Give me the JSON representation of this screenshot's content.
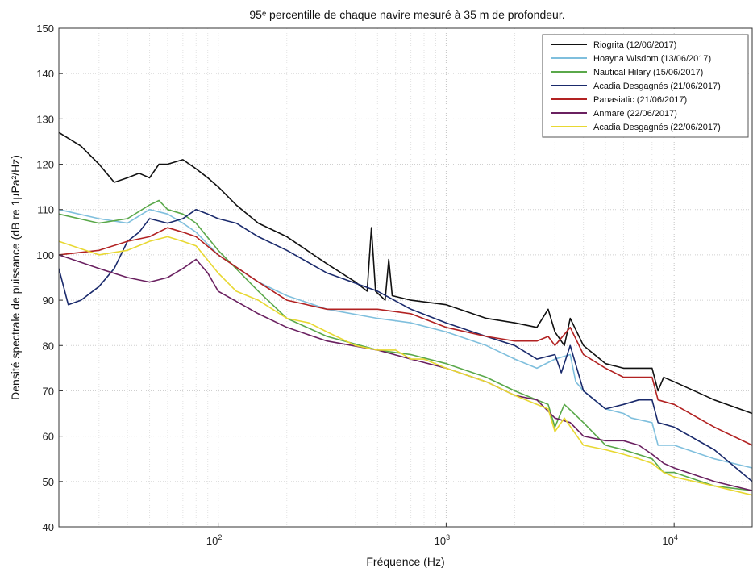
{
  "chart_data": {
    "type": "line",
    "title": "95ᵉ percentille de chaque navire mesuré à 35 m de profondeur.",
    "xlabel": "Fréquence (Hz)",
    "ylabel": "Densité spectrale de puissance (dB re 1µPa²/Hz)",
    "xscale": "log",
    "xlim": [
      20,
      22000
    ],
    "ylim": [
      40,
      150
    ],
    "grid": true,
    "legend_position": "top-right",
    "yticks": [
      40,
      50,
      60,
      70,
      80,
      90,
      100,
      110,
      120,
      130,
      140,
      150
    ],
    "xticks": [
      100,
      1000,
      10000
    ],
    "xtick_labels": [
      {
        "base": "10",
        "exp": "2"
      },
      {
        "base": "10",
        "exp": "3"
      },
      {
        "base": "10",
        "exp": "4"
      }
    ],
    "series": [
      {
        "name": "Riogrita  (12/06/2017)",
        "color": "#111111",
        "points": [
          [
            20,
            127
          ],
          [
            25,
            124
          ],
          [
            30,
            120
          ],
          [
            35,
            116
          ],
          [
            40,
            117
          ],
          [
            45,
            118
          ],
          [
            50,
            117
          ],
          [
            55,
            120
          ],
          [
            60,
            120
          ],
          [
            70,
            121
          ],
          [
            80,
            119
          ],
          [
            90,
            117
          ],
          [
            100,
            115
          ],
          [
            120,
            111
          ],
          [
            150,
            107
          ],
          [
            200,
            104
          ],
          [
            300,
            98
          ],
          [
            400,
            94
          ],
          [
            450,
            92
          ],
          [
            470,
            106
          ],
          [
            490,
            92
          ],
          [
            540,
            90
          ],
          [
            560,
            99
          ],
          [
            580,
            91
          ],
          [
            700,
            90
          ],
          [
            1000,
            89
          ],
          [
            1500,
            86
          ],
          [
            2000,
            85
          ],
          [
            2500,
            84
          ],
          [
            2800,
            88
          ],
          [
            3000,
            83
          ],
          [
            3300,
            80
          ],
          [
            3500,
            86
          ],
          [
            4000,
            80
          ],
          [
            5000,
            76
          ],
          [
            6000,
            75
          ],
          [
            7000,
            75
          ],
          [
            8000,
            75
          ],
          [
            8500,
            70
          ],
          [
            9000,
            73
          ],
          [
            10000,
            72
          ],
          [
            15000,
            68
          ],
          [
            22000,
            65
          ]
        ]
      },
      {
        "name": "Hoayna Wisdom  (13/06/2017)",
        "color": "#7fbfdd",
        "points": [
          [
            20,
            110
          ],
          [
            30,
            108
          ],
          [
            40,
            107
          ],
          [
            50,
            110
          ],
          [
            60,
            109
          ],
          [
            70,
            107
          ],
          [
            80,
            105
          ],
          [
            100,
            100
          ],
          [
            150,
            94
          ],
          [
            200,
            91
          ],
          [
            300,
            88
          ],
          [
            500,
            86
          ],
          [
            700,
            85
          ],
          [
            1000,
            83
          ],
          [
            1500,
            80
          ],
          [
            2000,
            77
          ],
          [
            2500,
            75
          ],
          [
            3000,
            77
          ],
          [
            3500,
            78
          ],
          [
            3700,
            72
          ],
          [
            4000,
            70
          ],
          [
            5000,
            66
          ],
          [
            6000,
            65
          ],
          [
            6500,
            64
          ],
          [
            8000,
            63
          ],
          [
            8500,
            58
          ],
          [
            10000,
            58
          ],
          [
            15000,
            55
          ],
          [
            22000,
            53
          ]
        ]
      },
      {
        "name": "Nautical Hilary  (15/06/2017)",
        "color": "#5aa84a",
        "points": [
          [
            20,
            109
          ],
          [
            30,
            107
          ],
          [
            40,
            108
          ],
          [
            50,
            111
          ],
          [
            55,
            112
          ],
          [
            60,
            110
          ],
          [
            70,
            109
          ],
          [
            80,
            107
          ],
          [
            100,
            101
          ],
          [
            150,
            92
          ],
          [
            200,
            86
          ],
          [
            300,
            82
          ],
          [
            500,
            79
          ],
          [
            700,
            78
          ],
          [
            1000,
            76
          ],
          [
            1500,
            73
          ],
          [
            2000,
            70
          ],
          [
            2500,
            68
          ],
          [
            2800,
            67
          ],
          [
            3000,
            62
          ],
          [
            3300,
            67
          ],
          [
            4000,
            63
          ],
          [
            5000,
            58
          ],
          [
            6000,
            57
          ],
          [
            8000,
            55
          ],
          [
            9000,
            52
          ],
          [
            10000,
            52
          ],
          [
            15000,
            49
          ],
          [
            22000,
            48
          ]
        ]
      },
      {
        "name": "Acadia Desgagnés  (21/06/2017)",
        "color": "#1a2a6c",
        "points": [
          [
            20,
            97
          ],
          [
            22,
            89
          ],
          [
            25,
            90
          ],
          [
            30,
            93
          ],
          [
            35,
            97
          ],
          [
            40,
            103
          ],
          [
            45,
            105
          ],
          [
            50,
            108
          ],
          [
            60,
            107
          ],
          [
            70,
            108
          ],
          [
            80,
            110
          ],
          [
            90,
            109
          ],
          [
            100,
            108
          ],
          [
            120,
            107
          ],
          [
            150,
            104
          ],
          [
            200,
            101
          ],
          [
            300,
            96
          ],
          [
            500,
            92
          ],
          [
            700,
            88
          ],
          [
            1000,
            85
          ],
          [
            1500,
            82
          ],
          [
            2000,
            80
          ],
          [
            2500,
            77
          ],
          [
            3000,
            78
          ],
          [
            3200,
            74
          ],
          [
            3500,
            80
          ],
          [
            4000,
            70
          ],
          [
            5000,
            66
          ],
          [
            6000,
            67
          ],
          [
            7000,
            68
          ],
          [
            8000,
            68
          ],
          [
            8500,
            63
          ],
          [
            10000,
            62
          ],
          [
            15000,
            57
          ],
          [
            22000,
            50
          ]
        ]
      },
      {
        "name": "Panasiatic  (21/06/2017)",
        "color": "#b22222",
        "points": [
          [
            20,
            100
          ],
          [
            30,
            101
          ],
          [
            40,
            103
          ],
          [
            50,
            104
          ],
          [
            60,
            106
          ],
          [
            70,
            105
          ],
          [
            80,
            104
          ],
          [
            100,
            100
          ],
          [
            150,
            94
          ],
          [
            200,
            90
          ],
          [
            300,
            88
          ],
          [
            500,
            88
          ],
          [
            700,
            87
          ],
          [
            1000,
            84
          ],
          [
            1500,
            82
          ],
          [
            2000,
            81
          ],
          [
            2500,
            81
          ],
          [
            2800,
            82
          ],
          [
            3000,
            80
          ],
          [
            3500,
            84
          ],
          [
            4000,
            78
          ],
          [
            5000,
            75
          ],
          [
            6000,
            73
          ],
          [
            7000,
            73
          ],
          [
            8000,
            73
          ],
          [
            8500,
            68
          ],
          [
            10000,
            67
          ],
          [
            15000,
            62
          ],
          [
            22000,
            58
          ]
        ]
      },
      {
        "name": "Anmare  (22/06/2017)",
        "color": "#6a2060",
        "points": [
          [
            20,
            100
          ],
          [
            30,
            97
          ],
          [
            40,
            95
          ],
          [
            50,
            94
          ],
          [
            60,
            95
          ],
          [
            70,
            97
          ],
          [
            80,
            99
          ],
          [
            90,
            96
          ],
          [
            100,
            92
          ],
          [
            150,
            87
          ],
          [
            200,
            84
          ],
          [
            300,
            81
          ],
          [
            500,
            79
          ],
          [
            700,
            77
          ],
          [
            1000,
            75
          ],
          [
            1500,
            72
          ],
          [
            2000,
            69
          ],
          [
            2500,
            68
          ],
          [
            3000,
            64
          ],
          [
            3500,
            63
          ],
          [
            4000,
            60
          ],
          [
            5000,
            59
          ],
          [
            6000,
            59
          ],
          [
            7000,
            58
          ],
          [
            8000,
            56
          ],
          [
            9000,
            54
          ],
          [
            10000,
            53
          ],
          [
            15000,
            50
          ],
          [
            22000,
            48
          ]
        ]
      },
      {
        "name": "Acadia Desgagnés (22/06/2017)",
        "color": "#e8d832",
        "points": [
          [
            20,
            103
          ],
          [
            30,
            100
          ],
          [
            40,
            101
          ],
          [
            50,
            103
          ],
          [
            60,
            104
          ],
          [
            70,
            103
          ],
          [
            80,
            102
          ],
          [
            100,
            96
          ],
          [
            120,
            92
          ],
          [
            150,
            90
          ],
          [
            200,
            86
          ],
          [
            250,
            85
          ],
          [
            300,
            83
          ],
          [
            400,
            80
          ],
          [
            500,
            79
          ],
          [
            600,
            79
          ],
          [
            700,
            77
          ],
          [
            800,
            77
          ],
          [
            1000,
            75
          ],
          [
            1500,
            72
          ],
          [
            2000,
            69
          ],
          [
            2500,
            67
          ],
          [
            2800,
            66
          ],
          [
            3000,
            61
          ],
          [
            3300,
            64
          ],
          [
            4000,
            58
          ],
          [
            5000,
            57
          ],
          [
            6000,
            56
          ],
          [
            7000,
            55
          ],
          [
            8000,
            54
          ],
          [
            9000,
            52
          ],
          [
            10000,
            51
          ],
          [
            15000,
            49
          ],
          [
            22000,
            47
          ]
        ]
      }
    ]
  }
}
